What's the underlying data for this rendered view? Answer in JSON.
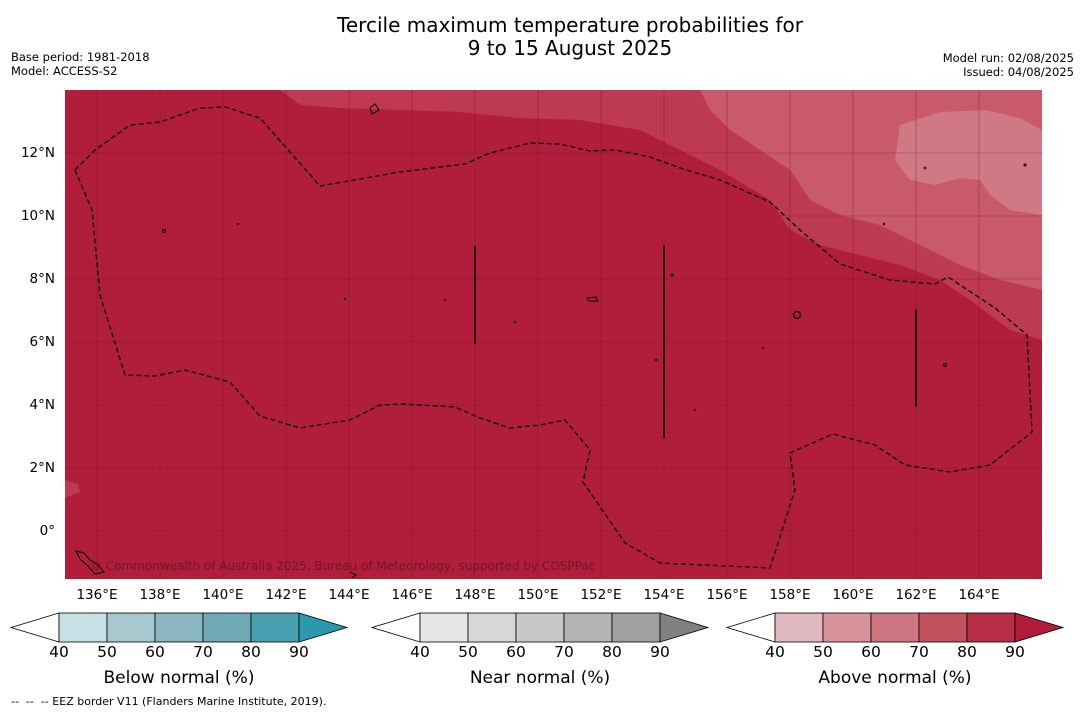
{
  "title_line1": "Tercile maximum temperature probabilities for",
  "title_line2": "9 to 15 August 2025",
  "meta_left": [
    "Base period: 1981-2018",
    "Model: ACCESS-S2"
  ],
  "meta_right": [
    "Model run: 02/08/2025",
    "Issued: 04/08/2025"
  ],
  "y_axis_labels": [
    "12°N",
    "10°N",
    "8°N",
    "6°N",
    "4°N",
    "2°N",
    "0°"
  ],
  "x_axis_labels": [
    "136°E",
    "138°E",
    "140°E",
    "142°E",
    "144°E",
    "146°E",
    "148°E",
    "150°E",
    "152°E",
    "154°E",
    "156°E",
    "158°E",
    "160°E",
    "162°E",
    "164°E"
  ],
  "copyright": "© Commonwealth of Australia 2025, Bureau of Meteorology, supported by COSPPac",
  "footer": "--  --  -- EEZ border V11 (Flanders Marine Institute, 2019).",
  "colorbars": [
    {
      "title": "Below normal (%)",
      "ticks": [
        "40",
        "50",
        "60",
        "70",
        "80",
        "90"
      ],
      "colors": [
        "#ffffff",
        "#c7e0e6",
        "#a7c8cf",
        "#8bb6c1",
        "#6fa9b6",
        "#4a9fb0",
        "#2a98ad"
      ]
    },
    {
      "title": "Near normal (%)",
      "ticks": [
        "40",
        "50",
        "60",
        "70",
        "80",
        "90"
      ],
      "colors": [
        "#ffffff",
        "#e6e6e6",
        "#d7d7d7",
        "#c8c8c8",
        "#b5b5b5",
        "#a0a0a0",
        "#808080"
      ]
    },
    {
      "title": "Above normal (%)",
      "ticks": [
        "40",
        "50",
        "60",
        "70",
        "80",
        "90"
      ],
      "colors": [
        "#ffffff",
        "#e0b8bf",
        "#d8949d",
        "#cd7681",
        "#c3525f",
        "#b72d45",
        "#b01c3a"
      ]
    }
  ],
  "map_colors": {
    "dominant": "#b11e3b",
    "level_80": "#bd3a50",
    "level_70": "#c85a69",
    "level_60": "#d07984"
  }
}
